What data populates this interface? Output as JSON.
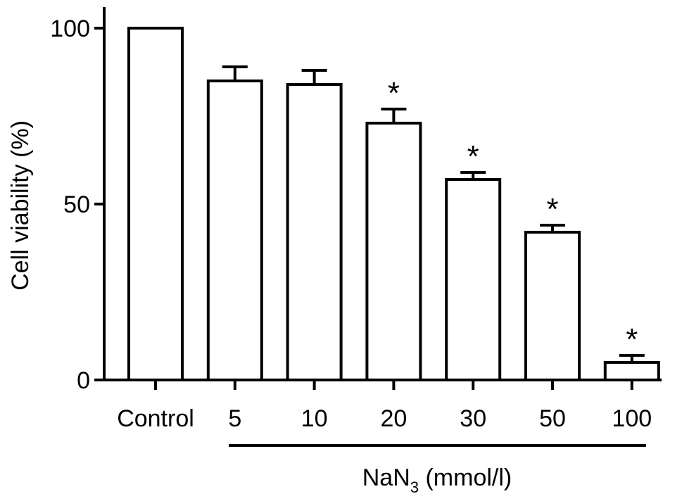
{
  "chart_data": {
    "type": "bar",
    "title": "",
    "categories": [
      "Control",
      "5",
      "10",
      "20",
      "30",
      "50",
      "100"
    ],
    "values": [
      100,
      85,
      84,
      73,
      57,
      42,
      5
    ],
    "error": [
      0,
      4,
      4,
      4,
      2,
      2,
      2
    ],
    "significance": [
      "",
      "",
      "",
      "*",
      "*",
      "*",
      "*"
    ],
    "ylabel": "Cell viability (%)",
    "xlabel": {
      "prefix": "NaN",
      "subscript": "3",
      "suffix": " (mmol/l)"
    },
    "yticks": [
      0,
      50,
      100
    ],
    "ylim": [
      0,
      105
    ],
    "bar_fill": "#ffffff",
    "bar_stroke": "#000000",
    "grid": false,
    "legend": "none"
  }
}
